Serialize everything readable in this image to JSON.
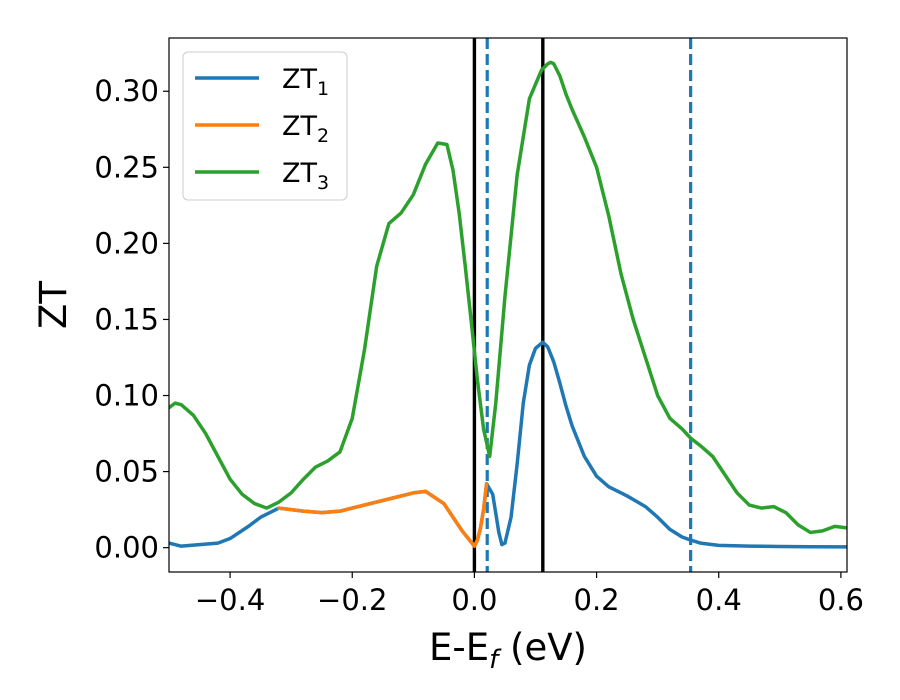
{
  "chart_data": {
    "type": "line",
    "xlabel": "E-E",
    "xlabel_sub": "f",
    "xlabel_unit": " (eV)",
    "ylabel": "ZT",
    "xlim": [
      -0.5,
      0.61
    ],
    "ylim": [
      -0.016,
      0.335
    ],
    "xticks": [
      -0.4,
      -0.2,
      0.0,
      0.2,
      0.4,
      0.6
    ],
    "xtick_labels": [
      "−0.4",
      "−0.2",
      "0.0",
      "0.2",
      "0.4",
      "0.6"
    ],
    "yticks": [
      0.0,
      0.05,
      0.1,
      0.15,
      0.2,
      0.25,
      0.3
    ],
    "ytick_labels": [
      "0.00",
      "0.05",
      "0.10",
      "0.15",
      "0.20",
      "0.25",
      "0.30"
    ],
    "grid": false,
    "legend_position": "top-left",
    "vlines": [
      {
        "x": 0.0,
        "color": "#000000",
        "style": "solid"
      },
      {
        "x": 0.112,
        "color": "#000000",
        "style": "solid"
      },
      {
        "x": 0.021,
        "color": "#1f77b4",
        "style": "dashed"
      },
      {
        "x": 0.354,
        "color": "#1f77b4",
        "style": "dashed"
      }
    ],
    "series": [
      {
        "name": "ZT",
        "sub": "1",
        "color": "#1f77b4",
        "x": [
          -0.5,
          -0.48,
          -0.45,
          -0.42,
          -0.4,
          -0.37,
          -0.35,
          -0.32,
          -0.3,
          -0.28,
          -0.25,
          -0.22,
          -0.2,
          -0.15,
          -0.1,
          -0.08,
          -0.05,
          -0.02,
          0.0,
          0.005,
          0.01,
          0.015,
          0.02,
          0.03,
          0.04,
          0.045,
          0.05,
          0.06,
          0.07,
          0.08,
          0.09,
          0.1,
          0.112,
          0.12,
          0.13,
          0.14,
          0.15,
          0.16,
          0.18,
          0.2,
          0.22,
          0.25,
          0.28,
          0.3,
          0.32,
          0.34,
          0.354,
          0.37,
          0.4,
          0.45,
          0.5,
          0.55,
          0.61
        ],
        "y": [
          0.003,
          0.001,
          0.002,
          0.003,
          0.006,
          0.014,
          0.02,
          0.026,
          0.025,
          0.024,
          0.023,
          0.024,
          0.026,
          0.031,
          0.036,
          0.037,
          0.029,
          0.011,
          0.001,
          0.005,
          0.013,
          0.025,
          0.042,
          0.035,
          0.01,
          0.002,
          0.003,
          0.02,
          0.055,
          0.095,
          0.12,
          0.131,
          0.135,
          0.132,
          0.122,
          0.108,
          0.093,
          0.08,
          0.06,
          0.047,
          0.04,
          0.034,
          0.027,
          0.02,
          0.012,
          0.007,
          0.005,
          0.003,
          0.0015,
          0.001,
          0.0008,
          0.0006,
          0.0005
        ]
      },
      {
        "name": "ZT",
        "sub": "2",
        "color": "#ff7f0e",
        "x": [
          -0.32,
          -0.3,
          -0.28,
          -0.25,
          -0.22,
          -0.2,
          -0.15,
          -0.1,
          -0.08,
          -0.05,
          -0.02,
          0.0,
          0.005,
          0.01,
          0.015,
          0.02
        ],
        "y": [
          0.026,
          0.025,
          0.024,
          0.023,
          0.024,
          0.026,
          0.031,
          0.036,
          0.037,
          0.029,
          0.011,
          0.001,
          0.005,
          0.013,
          0.025,
          0.042
        ]
      },
      {
        "name": "ZT",
        "sub": "3",
        "color": "#2ca02c",
        "x": [
          -0.5,
          -0.49,
          -0.48,
          -0.46,
          -0.44,
          -0.42,
          -0.4,
          -0.38,
          -0.36,
          -0.34,
          -0.32,
          -0.3,
          -0.28,
          -0.26,
          -0.24,
          -0.22,
          -0.2,
          -0.18,
          -0.16,
          -0.14,
          -0.12,
          -0.1,
          -0.08,
          -0.06,
          -0.045,
          -0.035,
          -0.025,
          -0.015,
          -0.005,
          0.005,
          0.015,
          0.025,
          0.035,
          0.05,
          0.07,
          0.09,
          0.11,
          0.12,
          0.125,
          0.13,
          0.14,
          0.15,
          0.16,
          0.18,
          0.2,
          0.22,
          0.24,
          0.26,
          0.28,
          0.3,
          0.32,
          0.34,
          0.354,
          0.37,
          0.39,
          0.41,
          0.43,
          0.45,
          0.47,
          0.49,
          0.51,
          0.53,
          0.55,
          0.57,
          0.59,
          0.61
        ],
        "y": [
          0.092,
          0.095,
          0.094,
          0.087,
          0.075,
          0.06,
          0.045,
          0.035,
          0.029,
          0.026,
          0.03,
          0.036,
          0.045,
          0.053,
          0.057,
          0.063,
          0.085,
          0.13,
          0.185,
          0.213,
          0.22,
          0.232,
          0.252,
          0.266,
          0.265,
          0.248,
          0.22,
          0.185,
          0.148,
          0.11,
          0.078,
          0.06,
          0.095,
          0.165,
          0.245,
          0.295,
          0.314,
          0.318,
          0.319,
          0.318,
          0.31,
          0.298,
          0.288,
          0.27,
          0.25,
          0.218,
          0.18,
          0.15,
          0.125,
          0.1,
          0.085,
          0.078,
          0.072,
          0.067,
          0.06,
          0.048,
          0.036,
          0.028,
          0.026,
          0.027,
          0.023,
          0.015,
          0.01,
          0.011,
          0.014,
          0.013
        ]
      }
    ]
  }
}
